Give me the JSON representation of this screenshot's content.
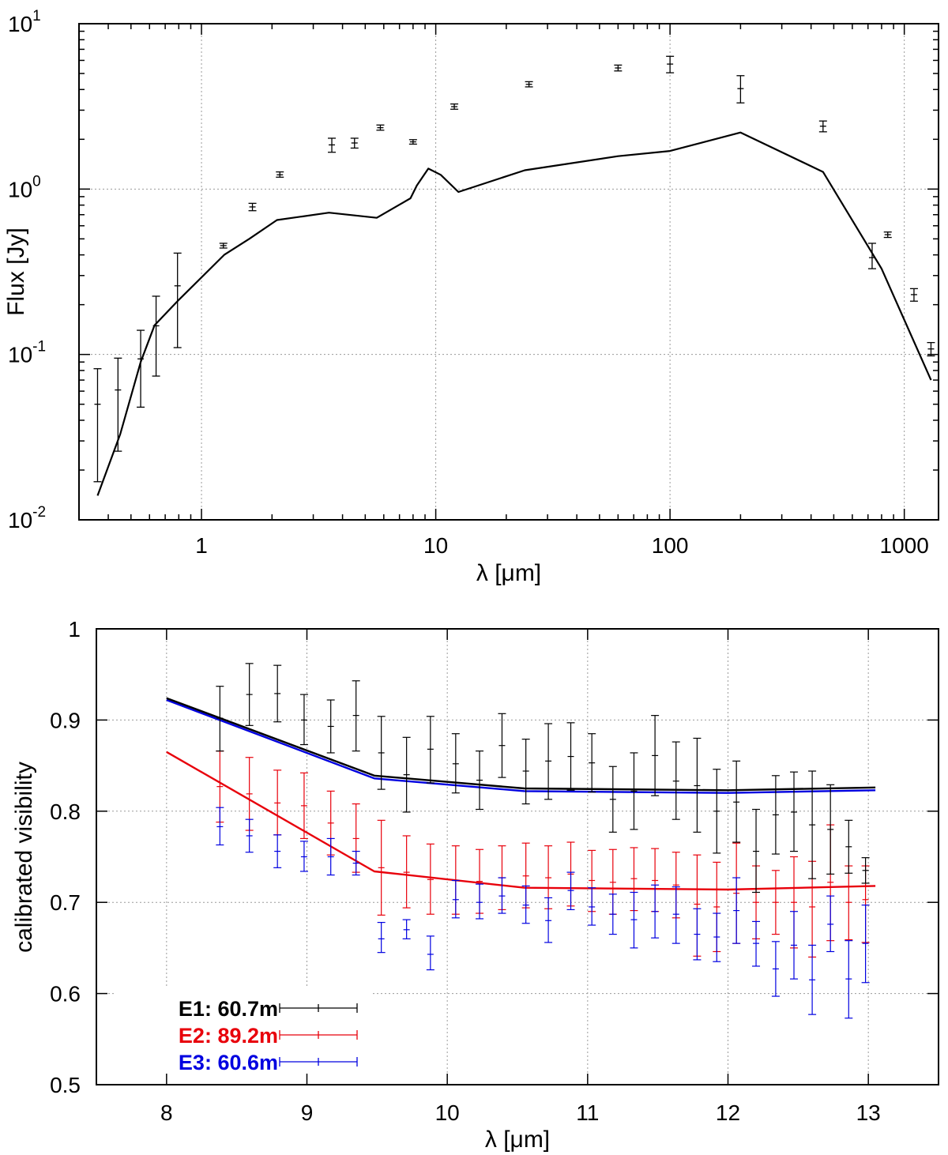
{
  "chart_data": [
    {
      "id": "sed",
      "type": "line+errorbar",
      "xscale": "log",
      "yscale": "log",
      "xlabel": "λ [μm]",
      "ylabel": "Flux [Jy]",
      "xlim": [
        0.3,
        1400
      ],
      "ylim": [
        0.01,
        10
      ],
      "grid": true,
      "x_ticks": [
        {
          "value": 1,
          "label": "1"
        },
        {
          "value": 10,
          "label": "10"
        },
        {
          "value": 100,
          "label": "100"
        },
        {
          "value": 1000,
          "label": "1000"
        }
      ],
      "y_ticks": [
        {
          "value": 0.01,
          "base": "10",
          "exp": "-2"
        },
        {
          "value": 0.1,
          "base": "10",
          "exp": "-1"
        },
        {
          "value": 1,
          "base": "10",
          "exp": "0"
        },
        {
          "value": 10,
          "base": "10",
          "exp": "1"
        }
      ],
      "model": {
        "name": "model SED",
        "color": "#000000",
        "x": [
          0.36,
          0.45,
          0.55,
          0.63,
          0.79,
          1.25,
          1.6,
          2.1,
          3.5,
          5.6,
          7.8,
          8.3,
          9.3,
          10.5,
          12.5,
          24,
          60,
          100,
          200,
          450,
          800,
          1300
        ],
        "y": [
          0.014,
          0.033,
          0.09,
          0.15,
          0.21,
          0.4,
          0.5,
          0.65,
          0.72,
          0.67,
          0.88,
          1.05,
          1.33,
          1.22,
          0.96,
          1.3,
          1.58,
          1.7,
          2.2,
          1.27,
          0.33,
          0.07
        ]
      },
      "observations": {
        "name": "photometry",
        "color": "#000000",
        "points": [
          {
            "x": 0.36,
            "y": 0.05,
            "lo": 0.017,
            "hi": 0.082
          },
          {
            "x": 0.44,
            "y": 0.061,
            "lo": 0.026,
            "hi": 0.095
          },
          {
            "x": 0.55,
            "y": 0.094,
            "lo": 0.048,
            "hi": 0.14
          },
          {
            "x": 0.64,
            "y": 0.149,
            "lo": 0.074,
            "hi": 0.225
          },
          {
            "x": 0.79,
            "y": 0.26,
            "lo": 0.11,
            "hi": 0.41
          },
          {
            "x": 1.24,
            "y": 0.455,
            "lo": 0.44,
            "hi": 0.47
          },
          {
            "x": 1.65,
            "y": 0.78,
            "lo": 0.74,
            "hi": 0.82
          },
          {
            "x": 2.16,
            "y": 1.22,
            "lo": 1.18,
            "hi": 1.27
          },
          {
            "x": 3.6,
            "y": 1.85,
            "lo": 1.67,
            "hi": 2.03
          },
          {
            "x": 4.5,
            "y": 1.9,
            "lo": 1.77,
            "hi": 2.03
          },
          {
            "x": 5.8,
            "y": 2.35,
            "lo": 2.27,
            "hi": 2.44
          },
          {
            "x": 8.0,
            "y": 1.93,
            "lo": 1.87,
            "hi": 1.99
          },
          {
            "x": 12,
            "y": 3.15,
            "lo": 3.04,
            "hi": 3.27
          },
          {
            "x": 25,
            "y": 4.3,
            "lo": 4.15,
            "hi": 4.46
          },
          {
            "x": 60,
            "y": 5.4,
            "lo": 5.18,
            "hi": 5.62
          },
          {
            "x": 100,
            "y": 5.7,
            "lo": 5.05,
            "hi": 6.35
          },
          {
            "x": 200,
            "y": 4.05,
            "lo": 3.32,
            "hi": 4.85
          },
          {
            "x": 450,
            "y": 2.4,
            "lo": 2.22,
            "hi": 2.58
          },
          {
            "x": 729,
            "y": 0.385,
            "lo": 0.33,
            "hi": 0.47
          },
          {
            "x": 850,
            "y": 0.53,
            "lo": 0.51,
            "hi": 0.55
          },
          {
            "x": 1100,
            "y": 0.23,
            "lo": 0.21,
            "hi": 0.25
          },
          {
            "x": 1300,
            "y": 0.108,
            "lo": 0.098,
            "hi": 0.118
          }
        ]
      }
    },
    {
      "id": "visibility",
      "type": "line+errorbar",
      "xlabel": "λ [μm]",
      "ylabel": "calibrated visibility",
      "xlim": [
        7.5,
        13.5
      ],
      "ylim": [
        0.5,
        1.0
      ],
      "grid": true,
      "legend_position": "bottom-left",
      "x_ticks": [
        {
          "value": 8,
          "label": "8"
        },
        {
          "value": 9,
          "label": "9"
        },
        {
          "value": 10,
          "label": "10"
        },
        {
          "value": 11,
          "label": "11"
        },
        {
          "value": 12,
          "label": "12"
        },
        {
          "value": 13,
          "label": "13"
        }
      ],
      "y_ticks": [
        {
          "value": 0.5,
          "label": "0.5"
        },
        {
          "value": 0.6,
          "label": "0.6"
        },
        {
          "value": 0.7,
          "label": "0.7"
        },
        {
          "value": 0.8,
          "label": "0.8"
        },
        {
          "value": 0.9,
          "label": "0.9"
        },
        {
          "value": 1.0,
          "label": "1"
        }
      ],
      "series": [
        {
          "name": "E1: 60.7m",
          "color": "#000000",
          "model_x": [
            8.0,
            9.48,
            10.55,
            12.0,
            13.05
          ],
          "model_y": [
            0.924,
            0.839,
            0.825,
            0.823,
            0.826
          ],
          "points": [
            {
              "x": 8.38,
              "y": 0.902,
              "lo": 0.866,
              "hi": 0.937
            },
            {
              "x": 8.59,
              "y": 0.928,
              "lo": 0.894,
              "hi": 0.962
            },
            {
              "x": 8.79,
              "y": 0.929,
              "lo": 0.898,
              "hi": 0.96
            },
            {
              "x": 8.98,
              "y": 0.9,
              "lo": 0.873,
              "hi": 0.928
            },
            {
              "x": 9.17,
              "y": 0.893,
              "lo": 0.864,
              "hi": 0.922
            },
            {
              "x": 9.35,
              "y": 0.905,
              "lo": 0.866,
              "hi": 0.943
            },
            {
              "x": 9.53,
              "y": 0.864,
              "lo": 0.824,
              "hi": 0.904
            },
            {
              "x": 9.71,
              "y": 0.84,
              "lo": 0.799,
              "hi": 0.881
            },
            {
              "x": 9.88,
              "y": 0.868,
              "lo": 0.831,
              "hi": 0.904
            },
            {
              "x": 10.06,
              "y": 0.852,
              "lo": 0.82,
              "hi": 0.885
            },
            {
              "x": 10.23,
              "y": 0.834,
              "lo": 0.802,
              "hi": 0.866
            },
            {
              "x": 10.39,
              "y": 0.872,
              "lo": 0.837,
              "hi": 0.907
            },
            {
              "x": 10.56,
              "y": 0.844,
              "lo": 0.808,
              "hi": 0.879
            },
            {
              "x": 10.72,
              "y": 0.855,
              "lo": 0.813,
              "hi": 0.896
            },
            {
              "x": 10.88,
              "y": 0.86,
              "lo": 0.823,
              "hi": 0.897
            },
            {
              "x": 11.03,
              "y": 0.853,
              "lo": 0.821,
              "hi": 0.885
            },
            {
              "x": 11.18,
              "y": 0.813,
              "lo": 0.777,
              "hi": 0.849
            },
            {
              "x": 11.33,
              "y": 0.822,
              "lo": 0.78,
              "hi": 0.864
            },
            {
              "x": 11.48,
              "y": 0.861,
              "lo": 0.817,
              "hi": 0.905
            },
            {
              "x": 11.63,
              "y": 0.833,
              "lo": 0.791,
              "hi": 0.876
            },
            {
              "x": 11.78,
              "y": 0.828,
              "lo": 0.777,
              "hi": 0.88
            },
            {
              "x": 11.92,
              "y": 0.8,
              "lo": 0.754,
              "hi": 0.846
            },
            {
              "x": 12.06,
              "y": 0.81,
              "lo": 0.766,
              "hi": 0.855
            },
            {
              "x": 12.2,
              "y": 0.756,
              "lo": 0.711,
              "hi": 0.802
            },
            {
              "x": 12.34,
              "y": 0.796,
              "lo": 0.753,
              "hi": 0.839
            },
            {
              "x": 12.47,
              "y": 0.799,
              "lo": 0.756,
              "hi": 0.843
            },
            {
              "x": 12.6,
              "y": 0.785,
              "lo": 0.726,
              "hi": 0.844
            },
            {
              "x": 12.73,
              "y": 0.78,
              "lo": 0.731,
              "hi": 0.829
            },
            {
              "x": 12.86,
              "y": 0.761,
              "lo": 0.732,
              "hi": 0.79
            },
            {
              "x": 12.98,
              "y": 0.735,
              "lo": 0.721,
              "hi": 0.749
            }
          ]
        },
        {
          "name": "E2: 89.2m",
          "color": "#e8000b",
          "model_x": [
            8.0,
            9.48,
            10.55,
            12.0,
            13.05
          ],
          "model_y": [
            0.865,
            0.734,
            0.716,
            0.714,
            0.718
          ],
          "points": [
            {
              "x": 8.38,
              "y": 0.827,
              "lo": 0.788,
              "hi": 0.866
            },
            {
              "x": 8.59,
              "y": 0.819,
              "lo": 0.779,
              "hi": 0.859
            },
            {
              "x": 8.79,
              "y": 0.809,
              "lo": 0.774,
              "hi": 0.845
            },
            {
              "x": 8.98,
              "y": 0.806,
              "lo": 0.77,
              "hi": 0.842
            },
            {
              "x": 9.17,
              "y": 0.787,
              "lo": 0.752,
              "hi": 0.822
            },
            {
              "x": 9.35,
              "y": 0.77,
              "lo": 0.733,
              "hi": 0.808
            },
            {
              "x": 9.53,
              "y": 0.738,
              "lo": 0.686,
              "hi": 0.79
            },
            {
              "x": 9.71,
              "y": 0.733,
              "lo": 0.694,
              "hi": 0.773
            },
            {
              "x": 9.88,
              "y": 0.725,
              "lo": 0.687,
              "hi": 0.764
            },
            {
              "x": 10.06,
              "y": 0.724,
              "lo": 0.687,
              "hi": 0.762
            },
            {
              "x": 10.23,
              "y": 0.723,
              "lo": 0.688,
              "hi": 0.758
            },
            {
              "x": 10.39,
              "y": 0.727,
              "lo": 0.692,
              "hi": 0.762
            },
            {
              "x": 10.56,
              "y": 0.729,
              "lo": 0.694,
              "hi": 0.765
            },
            {
              "x": 10.72,
              "y": 0.727,
              "lo": 0.693,
              "hi": 0.762
            },
            {
              "x": 10.88,
              "y": 0.731,
              "lo": 0.696,
              "hi": 0.766
            },
            {
              "x": 11.03,
              "y": 0.724,
              "lo": 0.69,
              "hi": 0.757
            },
            {
              "x": 11.18,
              "y": 0.722,
              "lo": 0.687,
              "hi": 0.758
            },
            {
              "x": 11.33,
              "y": 0.726,
              "lo": 0.691,
              "hi": 0.76
            },
            {
              "x": 11.48,
              "y": 0.724,
              "lo": 0.69,
              "hi": 0.759
            },
            {
              "x": 11.63,
              "y": 0.719,
              "lo": 0.683,
              "hi": 0.755
            },
            {
              "x": 11.78,
              "y": 0.698,
              "lo": 0.641,
              "hi": 0.752
            },
            {
              "x": 11.92,
              "y": 0.695,
              "lo": 0.646,
              "hi": 0.744
            },
            {
              "x": 12.06,
              "y": 0.71,
              "lo": 0.655,
              "hi": 0.765
            },
            {
              "x": 12.2,
              "y": 0.7,
              "lo": 0.66,
              "hi": 0.74
            },
            {
              "x": 12.34,
              "y": 0.7,
              "lo": 0.665,
              "hi": 0.735
            },
            {
              "x": 12.47,
              "y": 0.7,
              "lo": 0.65,
              "hi": 0.75
            },
            {
              "x": 12.6,
              "y": 0.695,
              "lo": 0.64,
              "hi": 0.745
            },
            {
              "x": 12.73,
              "y": 0.722,
              "lo": 0.658,
              "hi": 0.785
            },
            {
              "x": 12.86,
              "y": 0.7,
              "lo": 0.659,
              "hi": 0.74
            },
            {
              "x": 12.98,
              "y": 0.703,
              "lo": 0.656,
              "hi": 0.74
            }
          ]
        },
        {
          "name": "E3: 60.6m",
          "color": "#0000e0",
          "model_x": [
            8.0,
            9.48,
            10.55,
            12.0,
            13.05
          ],
          "model_y": [
            0.922,
            0.836,
            0.822,
            0.82,
            0.823
          ],
          "points": [
            {
              "x": 8.38,
              "y": 0.783,
              "lo": 0.763,
              "hi": 0.804
            },
            {
              "x": 8.59,
              "y": 0.773,
              "lo": 0.755,
              "hi": 0.791
            },
            {
              "x": 8.79,
              "y": 0.756,
              "lo": 0.738,
              "hi": 0.774
            },
            {
              "x": 8.98,
              "y": 0.75,
              "lo": 0.734,
              "hi": 0.767
            },
            {
              "x": 9.17,
              "y": 0.75,
              "lo": 0.73,
              "hi": 0.77
            },
            {
              "x": 9.35,
              "y": 0.743,
              "lo": 0.73,
              "hi": 0.756
            },
            {
              "x": 9.53,
              "y": 0.66,
              "lo": 0.645,
              "hi": 0.678
            },
            {
              "x": 9.71,
              "y": 0.67,
              "lo": 0.66,
              "hi": 0.681
            },
            {
              "x": 9.88,
              "y": 0.643,
              "lo": 0.626,
              "hi": 0.663
            },
            {
              "x": 10.06,
              "y": 0.703,
              "lo": 0.683,
              "hi": 0.724
            },
            {
              "x": 10.23,
              "y": 0.7,
              "lo": 0.682,
              "hi": 0.72
            },
            {
              "x": 10.39,
              "y": 0.707,
              "lo": 0.688,
              "hi": 0.727
            },
            {
              "x": 10.56,
              "y": 0.697,
              "lo": 0.677,
              "hi": 0.718
            },
            {
              "x": 10.72,
              "y": 0.68,
              "lo": 0.656,
              "hi": 0.705
            },
            {
              "x": 10.88,
              "y": 0.713,
              "lo": 0.692,
              "hi": 0.733
            },
            {
              "x": 11.03,
              "y": 0.695,
              "lo": 0.675,
              "hi": 0.716
            },
            {
              "x": 11.18,
              "y": 0.687,
              "lo": 0.665,
              "hi": 0.709
            },
            {
              "x": 11.33,
              "y": 0.681,
              "lo": 0.65,
              "hi": 0.711
            },
            {
              "x": 11.48,
              "y": 0.69,
              "lo": 0.661,
              "hi": 0.719
            },
            {
              "x": 11.63,
              "y": 0.687,
              "lo": 0.655,
              "hi": 0.717
            },
            {
              "x": 11.78,
              "y": 0.665,
              "lo": 0.637,
              "hi": 0.693
            },
            {
              "x": 11.92,
              "y": 0.662,
              "lo": 0.635,
              "hi": 0.688
            },
            {
              "x": 12.06,
              "y": 0.691,
              "lo": 0.655,
              "hi": 0.727
            },
            {
              "x": 12.2,
              "y": 0.655,
              "lo": 0.63,
              "hi": 0.679
            },
            {
              "x": 12.34,
              "y": 0.627,
              "lo": 0.597,
              "hi": 0.657
            },
            {
              "x": 12.47,
              "y": 0.653,
              "lo": 0.616,
              "hi": 0.69
            },
            {
              "x": 12.6,
              "y": 0.615,
              "lo": 0.577,
              "hi": 0.653
            },
            {
              "x": 12.73,
              "y": 0.676,
              "lo": 0.646,
              "hi": 0.707
            },
            {
              "x": 12.86,
              "y": 0.616,
              "lo": 0.573,
              "hi": 0.658
            },
            {
              "x": 12.98,
              "y": 0.655,
              "lo": 0.612,
              "hi": 0.697
            }
          ]
        }
      ]
    }
  ]
}
